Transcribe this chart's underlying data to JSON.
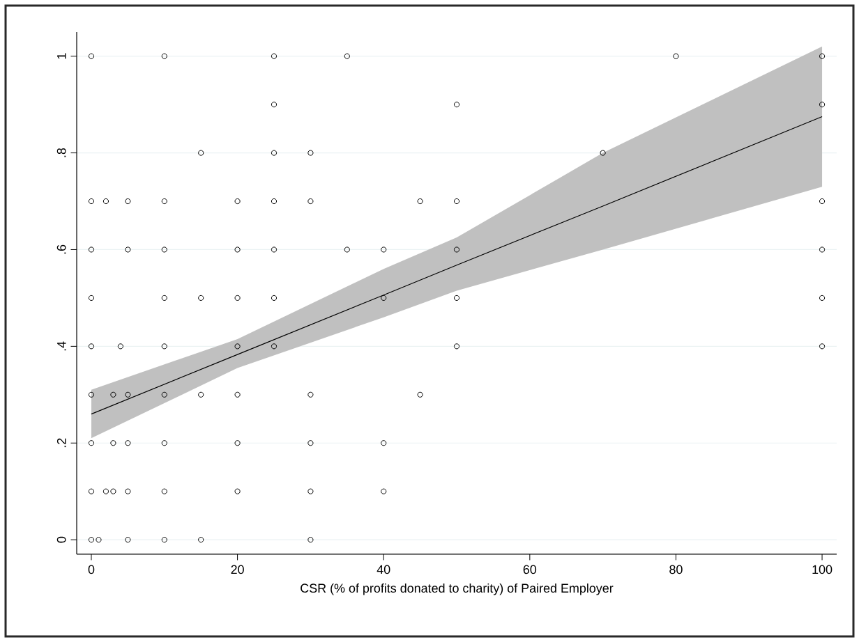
{
  "chart_data": {
    "type": "scatter",
    "xlabel": "CSR (% of profits donated to charity) of Paired Employer",
    "xlim": [
      -2,
      102
    ],
    "ylim": [
      -0.03,
      1.05
    ],
    "xticks": [
      0,
      20,
      40,
      60,
      80,
      100
    ],
    "yticks": [
      {
        "value": 0,
        "label": "0"
      },
      {
        "value": 0.2,
        "label": ".2"
      },
      {
        "value": 0.4,
        "label": ".4"
      },
      {
        "value": 0.6,
        "label": ".6"
      },
      {
        "value": 0.8,
        "label": ".8"
      },
      {
        "value": 1,
        "label": "1"
      }
    ],
    "grid": "y",
    "series": [
      {
        "color": "#000000",
        "marker": "circle",
        "x": [
          0,
          10,
          25,
          35,
          80,
          100,
          25,
          50,
          100,
          15,
          25,
          30,
          70,
          0,
          2,
          5,
          10,
          20,
          25,
          30,
          45,
          50,
          100,
          0,
          5,
          10,
          20,
          25,
          35,
          40,
          50,
          100,
          0,
          10,
          15,
          20,
          25,
          40,
          50,
          100,
          0,
          4,
          10,
          20,
          25,
          50,
          100,
          0,
          3,
          5,
          10,
          15,
          20,
          30,
          45,
          0,
          3,
          5,
          10,
          20,
          30,
          40,
          0,
          2,
          3,
          5,
          10,
          20,
          30,
          40,
          0,
          1,
          5,
          10,
          15,
          30
        ],
        "values": [
          1,
          1,
          1,
          1,
          1,
          1,
          0.9,
          0.9,
          0.9,
          0.8,
          0.8,
          0.8,
          0.8,
          0.7,
          0.7,
          0.7,
          0.7,
          0.7,
          0.7,
          0.7,
          0.7,
          0.7,
          0.7,
          0.6,
          0.6,
          0.6,
          0.6,
          0.6,
          0.6,
          0.6,
          0.6,
          0.6,
          0.5,
          0.5,
          0.5,
          0.5,
          0.5,
          0.5,
          0.5,
          0.5,
          0.4,
          0.4,
          0.4,
          0.4,
          0.4,
          0.4,
          0.4,
          0.3,
          0.3,
          0.3,
          0.3,
          0.3,
          0.3,
          0.3,
          0.3,
          0.2,
          0.2,
          0.2,
          0.2,
          0.2,
          0.2,
          0.2,
          0.1,
          0.1,
          0.1,
          0.1,
          0.1,
          0.1,
          0.1,
          0.1,
          0,
          0,
          0,
          0,
          0,
          0
        ]
      },
      {
        "type": "line",
        "color": "#000000",
        "marker": "none",
        "x": [
          0,
          20,
          40,
          50,
          70,
          100
        ],
        "values": [
          0.26,
          0.383,
          0.506,
          0.568,
          0.69,
          0.875
        ],
        "lower": [
          0.21,
          0.355,
          0.46,
          0.515,
          0.6,
          0.73
        ],
        "upper": [
          0.31,
          0.415,
          0.56,
          0.625,
          0.8,
          1.02
        ]
      }
    ]
  }
}
